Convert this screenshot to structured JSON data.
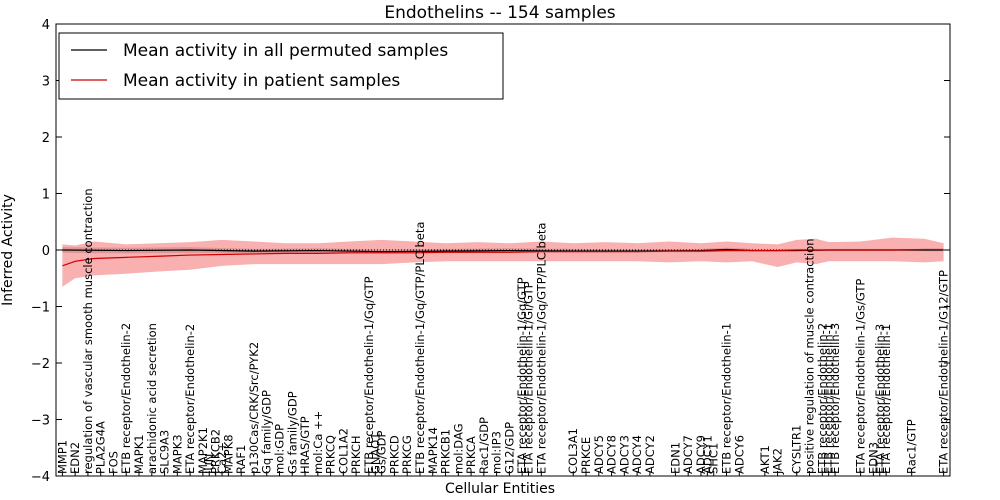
{
  "chart_data": {
    "type": "line",
    "title": "Endothelins -- 154 samples",
    "xlabel": "Cellular Entities",
    "ylabel": "Inferred Activity",
    "ylim": [
      -4,
      4
    ],
    "yticks": [
      -4,
      -3,
      -2,
      -1,
      0,
      1,
      2,
      3,
      4
    ],
    "grid": false,
    "legend_position": "top-left",
    "categories": [
      "MMP1",
      "EDN2",
      "regulation of vascular smooth muscle contraction",
      "PLA2G4A",
      "FOS",
      "ETB receptor/Endothelin-2",
      "MAPK1",
      "arachidonic acid secretion",
      "SLC9A3",
      "MAPK3",
      "ETA receptor/Endothelin-2",
      "MAP2K1",
      "JUN",
      "PRKCB2",
      "Ca2+",
      "MAPK8",
      "RAF1",
      "p130Cas/CRK/Src/PYK2",
      "Gq family/GDP",
      "mol:GDP",
      "Gs family/GDP",
      "HRAS/GTP",
      "mol:Ca ++",
      "PRKCQ",
      "COL1A2",
      "PRKCH",
      "ETB receptor/Endothelin-1/Gq/GTP",
      "GNAO1",
      "Gs/GDP",
      "PRKCD",
      "PRKCG",
      "ETB receptor/Endothelin-1/Gq/GTP/PLC beta",
      "MAPK14",
      "PRKCB1",
      "mol:DAG",
      "PRKCA",
      "Rac1/GDP",
      "mol:IP3",
      "G12/GDP",
      "ETA receptor/Endothelin-1/Gq/GTP",
      "ETA receptor/Endothelin-1/Gi/GTP",
      "ETA receptor/Endothelin-1/Gq/GTP/PLC beta",
      "COL3A1",
      "PRKCE",
      "ADCY5",
      "ADCY8",
      "ADCY3",
      "ADCY4",
      "ADCY2",
      "EDN1",
      "ADCY7",
      "ADCY9",
      "ADCY1",
      "SHC1",
      "ETB receptor/Endothelin-1",
      "ADCY6",
      "AKT1",
      "JAK2",
      "CYSLTR1",
      "positive regulation of muscle contraction",
      "ETB receptor/Endothelin-2",
      "ETB receptor/Endothelin-1",
      "ETB receptor/Endothelin-3",
      "ETA receptor/Endothelin-1/Gs/GTP",
      "EDN3",
      "ETA receptor/Endothelin-3",
      "ETA receptor/Endothelin-1",
      "Rac1/GTP",
      "ETA receptor/Endothelin-1/G12/GTP"
    ],
    "x_positions": [
      0,
      2,
      4,
      6,
      8,
      10,
      12,
      14,
      16,
      18,
      20,
      22,
      23,
      24,
      25,
      26,
      28,
      30,
      32,
      34,
      36,
      38,
      40,
      42,
      44,
      46,
      48,
      49,
      50,
      52,
      54,
      56,
      58,
      60,
      62,
      64,
      66,
      68,
      70,
      72,
      73,
      75,
      80,
      82,
      84,
      86,
      88,
      90,
      92,
      96,
      98,
      100,
      101,
      102,
      104,
      106,
      110,
      112,
      115,
      117,
      119,
      120,
      121,
      125,
      127,
      128,
      129,
      133,
      138
    ],
    "x_range": [
      -1,
      139
    ],
    "series": [
      {
        "name": "Mean activity in all permuted samples",
        "color": "#000000",
        "x": [
          0,
          10,
          20,
          30,
          40,
          50,
          60,
          70,
          80,
          90,
          100,
          104,
          108,
          115,
          120,
          125,
          130,
          138
        ],
        "values": [
          0.0,
          -0.01,
          0.0,
          -0.02,
          -0.01,
          -0.03,
          -0.02,
          -0.01,
          -0.02,
          -0.02,
          -0.01,
          0.01,
          -0.01,
          -0.01,
          0.0,
          0.0,
          0.0,
          0.0
        ],
        "band_low": [
          -0.05,
          -0.06,
          -0.05,
          -0.06,
          -0.06,
          -0.06,
          -0.05,
          -0.04,
          -0.04,
          -0.04,
          -0.04,
          -0.03,
          -0.03,
          -0.03,
          -0.02,
          -0.02,
          -0.02,
          -0.02
        ],
        "band_high": [
          0.05,
          0.04,
          0.05,
          0.02,
          0.03,
          0.01,
          0.02,
          0.03,
          0.02,
          0.01,
          0.02,
          0.04,
          0.02,
          0.02,
          0.02,
          0.02,
          0.02,
          0.02
        ]
      },
      {
        "name": "Mean activity in patient samples",
        "color": "#cc0000",
        "x": [
          0,
          2,
          5,
          10,
          15,
          20,
          25,
          30,
          35,
          40,
          45,
          50,
          55,
          60,
          65,
          70,
          75,
          80,
          85,
          90,
          95,
          100,
          104,
          108,
          112,
          115,
          118,
          120,
          125,
          130,
          135,
          138
        ],
        "values": [
          -0.28,
          -0.2,
          -0.15,
          -0.13,
          -0.11,
          -0.09,
          -0.08,
          -0.07,
          -0.06,
          -0.06,
          -0.05,
          -0.05,
          -0.05,
          -0.04,
          -0.04,
          -0.04,
          -0.03,
          -0.03,
          -0.03,
          -0.03,
          -0.02,
          -0.02,
          -0.01,
          -0.01,
          -0.01,
          0.0,
          0.0,
          0.0,
          0.0,
          0.0,
          0.01,
          0.01
        ],
        "band_low": [
          -0.65,
          -0.5,
          -0.45,
          -0.42,
          -0.38,
          -0.35,
          -0.28,
          -0.25,
          -0.25,
          -0.25,
          -0.25,
          -0.25,
          -0.22,
          -0.2,
          -0.2,
          -0.2,
          -0.2,
          -0.2,
          -0.2,
          -0.2,
          -0.22,
          -0.2,
          -0.22,
          -0.2,
          -0.3,
          -0.22,
          -0.25,
          -0.2,
          -0.2,
          -0.2,
          -0.22,
          -0.2
        ],
        "band_high": [
          0.1,
          0.08,
          0.15,
          0.1,
          0.12,
          0.14,
          0.18,
          0.15,
          0.12,
          0.12,
          0.15,
          0.18,
          0.15,
          0.12,
          0.14,
          0.12,
          0.15,
          0.12,
          0.14,
          0.12,
          0.15,
          0.12,
          0.15,
          0.12,
          0.1,
          0.18,
          0.2,
          0.14,
          0.15,
          0.22,
          0.2,
          0.12
        ]
      }
    ]
  }
}
